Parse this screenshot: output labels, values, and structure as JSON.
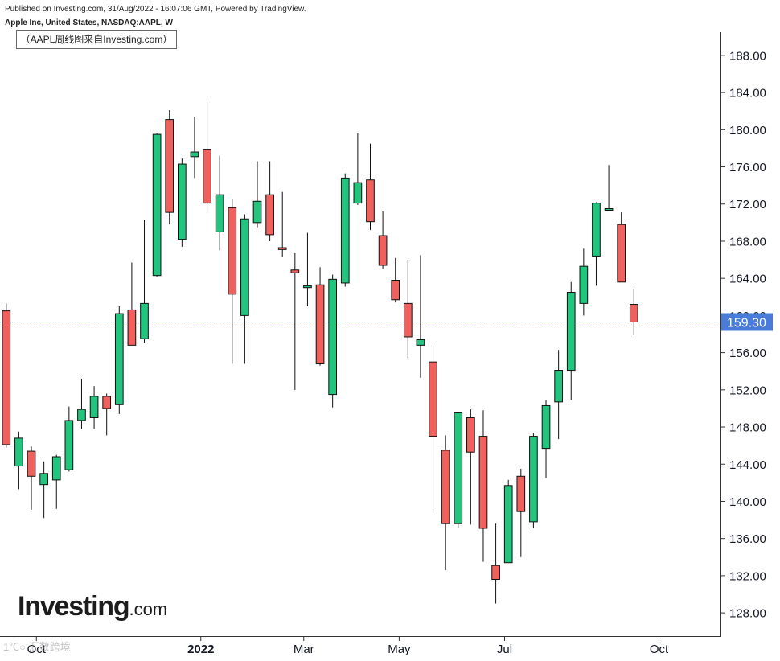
{
  "header": {
    "published_line": "Published on Investing.com, 31/Aug/2022 - 16:07:06 GMT, Powered by TradingView.",
    "symbol_line": "Apple Inc, United States, NASDAQ:AAPL, W",
    "note_text": "（AAPL周线图来自Investing.com）"
  },
  "logo": {
    "brand": "Investing",
    "suffix": ".com"
  },
  "watermark": {
    "text": "1℃○ 汇数跨境"
  },
  "colors": {
    "up": "#22c47e",
    "down": "#f0605c",
    "wick": "#111111",
    "axis": "#333333",
    "price_line": "#4a7bd8",
    "price_label_bg": "#4a7bd8"
  },
  "chart_data": {
    "type": "candlestick",
    "title": "Apple Inc, United States, NASDAQ:AAPL, W",
    "x_tick_labels": [
      "Oct",
      "2022",
      "Mar",
      "May",
      "Jul",
      "Oct"
    ],
    "x_tick_weeks": [
      2.4,
      15.5,
      23.7,
      31.3,
      39.7,
      52
    ],
    "y_ticks": [
      128,
      132,
      136,
      140,
      144,
      148,
      152,
      156,
      160,
      164,
      168,
      172,
      176,
      180,
      184,
      188
    ],
    "y_tick_labels": [
      "128.00",
      "132.00",
      "136.00",
      "140.00",
      "144.00",
      "148.00",
      "152.00",
      "156.00",
      "160.00",
      "164.00",
      "168.00",
      "172.00",
      "176.00",
      "180.00",
      "184.00",
      "188.00"
    ],
    "ylim": [
      125.5,
      190.5
    ],
    "xlim": [
      -0.5,
      56.9
    ],
    "last_price": 159.3,
    "last_price_label": "159.30",
    "grid": false,
    "candles": [
      {
        "o": 160.5,
        "h": 161.3,
        "l": 145.8,
        "c": 146.1
      },
      {
        "o": 143.8,
        "h": 147.5,
        "l": 141.3,
        "c": 146.8
      },
      {
        "o": 145.4,
        "h": 145.9,
        "l": 139.1,
        "c": 142.7
      },
      {
        "o": 141.8,
        "h": 144.3,
        "l": 138.2,
        "c": 143.0
      },
      {
        "o": 142.3,
        "h": 145.0,
        "l": 139.2,
        "c": 144.8
      },
      {
        "o": 143.4,
        "h": 150.2,
        "l": 143.2,
        "c": 148.7
      },
      {
        "o": 148.7,
        "h": 153.2,
        "l": 147.8,
        "c": 149.9
      },
      {
        "o": 149.0,
        "h": 152.4,
        "l": 147.8,
        "c": 151.3
      },
      {
        "o": 151.3,
        "h": 151.6,
        "l": 147.1,
        "c": 150.0
      },
      {
        "o": 150.4,
        "h": 161.0,
        "l": 149.4,
        "c": 160.2
      },
      {
        "o": 160.6,
        "h": 165.7,
        "l": 156.8,
        "c": 156.8
      },
      {
        "o": 157.5,
        "h": 170.3,
        "l": 157.0,
        "c": 161.3
      },
      {
        "o": 164.3,
        "h": 179.6,
        "l": 164.2,
        "c": 179.5
      },
      {
        "o": 181.1,
        "h": 182.1,
        "l": 169.8,
        "c": 171.1
      },
      {
        "o": 168.2,
        "h": 176.9,
        "l": 167.4,
        "c": 176.3
      },
      {
        "o": 177.1,
        "h": 181.4,
        "l": 174.8,
        "c": 177.6
      },
      {
        "o": 177.9,
        "h": 182.9,
        "l": 171.1,
        "c": 172.1
      },
      {
        "o": 169.0,
        "h": 177.2,
        "l": 167.0,
        "c": 173.0
      },
      {
        "o": 171.6,
        "h": 172.5,
        "l": 154.8,
        "c": 162.3
      },
      {
        "o": 160.0,
        "h": 170.9,
        "l": 154.8,
        "c": 170.4
      },
      {
        "o": 170.0,
        "h": 176.6,
        "l": 169.5,
        "c": 172.3
      },
      {
        "o": 173.0,
        "h": 176.6,
        "l": 168.0,
        "c": 168.7
      },
      {
        "o": 167.3,
        "h": 173.3,
        "l": 166.3,
        "c": 167.1
      },
      {
        "o": 164.9,
        "h": 166.7,
        "l": 152.0,
        "c": 164.6
      },
      {
        "o": 163.0,
        "h": 168.9,
        "l": 161.0,
        "c": 163.2
      },
      {
        "o": 163.3,
        "h": 165.2,
        "l": 154.6,
        "c": 154.8
      },
      {
        "o": 151.5,
        "h": 164.4,
        "l": 150.1,
        "c": 163.9
      },
      {
        "o": 163.5,
        "h": 175.3,
        "l": 163.1,
        "c": 174.8
      },
      {
        "o": 172.1,
        "h": 179.6,
        "l": 171.9,
        "c": 174.3
      },
      {
        "o": 174.6,
        "h": 178.5,
        "l": 169.2,
        "c": 170.1
      },
      {
        "o": 168.6,
        "h": 171.2,
        "l": 165.0,
        "c": 165.4
      },
      {
        "o": 163.8,
        "h": 166.2,
        "l": 161.4,
        "c": 161.7
      },
      {
        "o": 161.3,
        "h": 166.0,
        "l": 155.4,
        "c": 157.7
      },
      {
        "o": 156.8,
        "h": 166.5,
        "l": 153.3,
        "c": 157.4
      },
      {
        "o": 155.0,
        "h": 156.7,
        "l": 138.8,
        "c": 147.0
      },
      {
        "o": 145.5,
        "h": 147.1,
        "l": 132.6,
        "c": 137.6
      },
      {
        "o": 137.6,
        "h": 149.6,
        "l": 137.2,
        "c": 149.6
      },
      {
        "o": 149.0,
        "h": 149.9,
        "l": 137.5,
        "c": 145.3
      },
      {
        "o": 147.0,
        "h": 149.8,
        "l": 133.5,
        "c": 137.1
      },
      {
        "o": 133.1,
        "h": 137.6,
        "l": 129.0,
        "c": 131.6
      },
      {
        "o": 133.4,
        "h": 142.3,
        "l": 133.4,
        "c": 141.7
      },
      {
        "o": 142.7,
        "h": 143.5,
        "l": 134.0,
        "c": 138.9
      },
      {
        "o": 137.8,
        "h": 147.3,
        "l": 137.1,
        "c": 147.0
      },
      {
        "o": 145.7,
        "h": 150.9,
        "l": 142.5,
        "c": 150.3
      },
      {
        "o": 150.7,
        "h": 156.3,
        "l": 146.7,
        "c": 154.1
      },
      {
        "o": 154.1,
        "h": 163.6,
        "l": 150.9,
        "c": 162.5
      },
      {
        "o": 161.3,
        "h": 167.2,
        "l": 160.0,
        "c": 165.3
      },
      {
        "o": 166.4,
        "h": 172.2,
        "l": 163.2,
        "c": 172.1
      },
      {
        "o": 171.5,
        "h": 176.2,
        "l": 171.4,
        "c": 171.5
      },
      {
        "o": 169.8,
        "h": 171.1,
        "l": 163.6,
        "c": 163.6
      },
      {
        "o": 161.2,
        "h": 162.9,
        "l": 157.9,
        "c": 159.3
      }
    ]
  }
}
